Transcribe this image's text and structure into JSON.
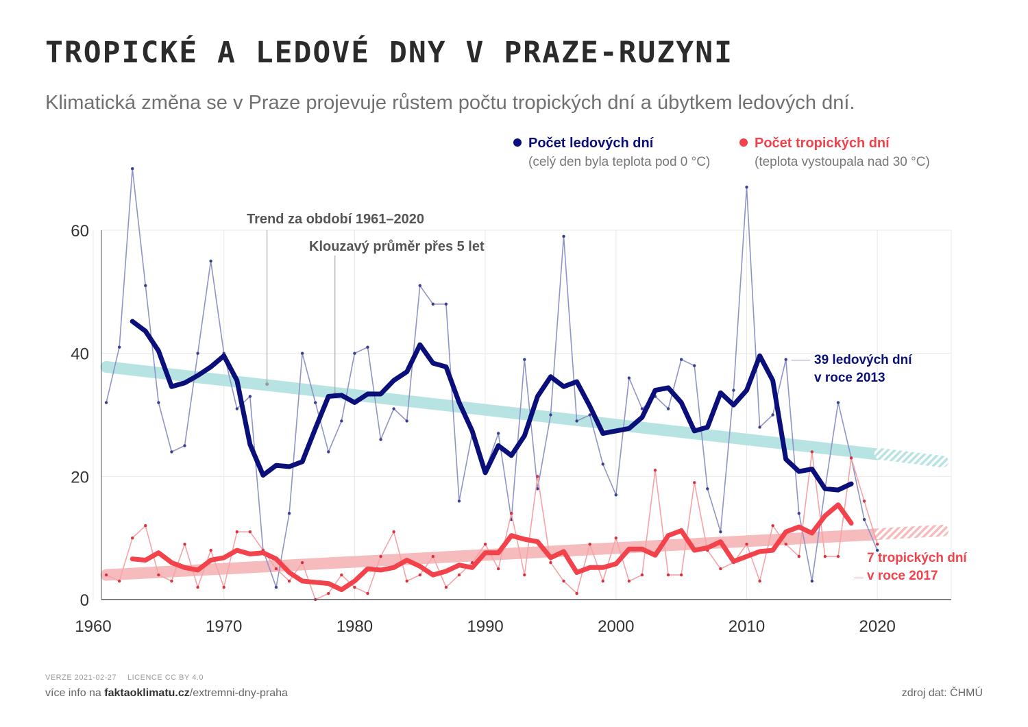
{
  "title": "TROPICKÉ A LEDOVÉ DNY V PRAZE-RUZYNI",
  "subtitle": "Klimatická změna se v Praze projevuje růstem počtu tropických dní a úbytkem ledových dní.",
  "legend": {
    "ice": {
      "label": "Počet ledových dní",
      "note": "(celý den byla teplota pod 0 °C)"
    },
    "tropical": {
      "label": "Počet tropických dní",
      "note": "(teplota vystoupala nad 30 °C)"
    }
  },
  "annotations": {
    "trend": "Trend za období 1961–2020",
    "moving_avg": "Klouzavý průměr přes 5 let",
    "ice_callout": [
      "39 ledových dní",
      "v roce 2013"
    ],
    "tropical_callout": [
      "7 tropických dní",
      "v roce 2017"
    ]
  },
  "footer": {
    "version": "VERZE 2021-02-27",
    "licence": "LICENCE CC BY 4.0",
    "more_prefix": "více info na ",
    "more_domain": "faktaoklimatu.cz",
    "more_path": "/extremni-dny-praha",
    "source": "zdroj dat: ČHMÚ"
  },
  "colors": {
    "ice": "#0a0f7a",
    "ice_thin": "#8f94c7",
    "tropical": "#f2424b",
    "tropical_thin": "#f5a3a7",
    "ice_trend": "#b7e3e3",
    "tropical_trend": "#f6bcbd"
  },
  "chart_data": {
    "type": "line",
    "xlim": [
      1960,
      2025
    ],
    "ylim": [
      0,
      70
    ],
    "x_ticks": [
      1960,
      1970,
      1980,
      1990,
      2000,
      2010,
      2020
    ],
    "y_ticks": [
      0,
      20,
      40,
      60
    ],
    "grid": true,
    "legend_position": "top-right",
    "series": [
      {
        "name": "Počet ledových dní",
        "x": [
          1961,
          1962,
          1963,
          1964,
          1965,
          1966,
          1967,
          1968,
          1969,
          1970,
          1971,
          1972,
          1973,
          1974,
          1975,
          1976,
          1977,
          1978,
          1979,
          1980,
          1981,
          1982,
          1983,
          1984,
          1985,
          1986,
          1987,
          1988,
          1989,
          1990,
          1991,
          1992,
          1993,
          1994,
          1995,
          1996,
          1997,
          1998,
          1999,
          2000,
          2001,
          2002,
          2003,
          2004,
          2005,
          2006,
          2007,
          2008,
          2009,
          2010,
          2011,
          2012,
          2013,
          2014,
          2015,
          2016,
          2017,
          2018,
          2019,
          2020
        ],
        "values": [
          32,
          41,
          70,
          51,
          32,
          24,
          25,
          40,
          55,
          40,
          31,
          33,
          8,
          2,
          14,
          40,
          32,
          24,
          29,
          40,
          41,
          26,
          31,
          29,
          51,
          48,
          48,
          16,
          27,
          21,
          27,
          13,
          39,
          18,
          30,
          59,
          29,
          30,
          22,
          17,
          36,
          31,
          33,
          31,
          39,
          38,
          18,
          11,
          34,
          67,
          28,
          30,
          39,
          14,
          3,
          18,
          32,
          23,
          13,
          8
        ]
      },
      {
        "name": "Klouzavý průměr přes 5 let (ledové dny)",
        "x": [
          1963,
          1964,
          1965,
          1966,
          1967,
          1968,
          1969,
          1970,
          1971,
          1972,
          1973,
          1974,
          1975,
          1976,
          1977,
          1978,
          1979,
          1980,
          1981,
          1982,
          1983,
          1984,
          1985,
          1986,
          1987,
          1988,
          1989,
          1990,
          1991,
          1992,
          1993,
          1994,
          1995,
          1996,
          1997,
          1998,
          1999,
          2000,
          2001,
          2002,
          2003,
          2004,
          2005,
          2006,
          2007,
          2008,
          2009,
          2010,
          2011,
          2012,
          2013,
          2014,
          2015,
          2016,
          2017,
          2018
        ],
        "values": [
          45.2,
          43.6,
          40.4,
          34.6,
          35.2,
          36.4,
          37.8,
          39.6,
          35.6,
          25.2,
          20.2,
          21.8,
          21.6,
          22.4,
          27.8,
          33.0,
          33.2,
          32.0,
          33.4,
          33.4,
          35.6,
          37.0,
          41.4,
          38.4,
          37.8,
          32.0,
          27.4,
          20.6,
          25.0,
          23.4,
          26.6,
          33.0,
          36.2,
          34.6,
          35.4,
          31.4,
          27.0,
          27.4,
          27.8,
          29.6,
          34.0,
          34.4,
          32.0,
          27.4,
          28.0,
          33.6,
          31.6,
          34.0,
          39.6,
          35.6,
          22.8,
          20.8,
          21.2,
          18.0,
          17.8,
          18.8
        ]
      },
      {
        "name": "Trend za období 1961–2020 (ledové dny)",
        "x": [
          1961,
          2020
        ],
        "values": [
          37.8,
          23.6
        ],
        "extension_to": 2025,
        "extension_value": 22.4
      },
      {
        "name": "Počet tropických dní",
        "x": [
          1961,
          1962,
          1963,
          1964,
          1965,
          1966,
          1967,
          1968,
          1969,
          1970,
          1971,
          1972,
          1973,
          1974,
          1975,
          1976,
          1977,
          1978,
          1979,
          1980,
          1981,
          1982,
          1983,
          1984,
          1985,
          1986,
          1987,
          1988,
          1989,
          1990,
          1991,
          1992,
          1993,
          1994,
          1995,
          1996,
          1997,
          1998,
          1999,
          2000,
          2001,
          2002,
          2003,
          2004,
          2005,
          2006,
          2007,
          2008,
          2009,
          2010,
          2011,
          2012,
          2013,
          2014,
          2015,
          2016,
          2017,
          2018,
          2019,
          2020
        ],
        "values": [
          4,
          3,
          10,
          12,
          4,
          3,
          9,
          2,
          8,
          2,
          11,
          11,
          8,
          5,
          3,
          6,
          0,
          1,
          4,
          2,
          1,
          7,
          11,
          3,
          4,
          7,
          2,
          4,
          6,
          9,
          5,
          14,
          4,
          20,
          6,
          3,
          1,
          9,
          3,
          10,
          3,
          4,
          21,
          4,
          4,
          19,
          8,
          5,
          6,
          9,
          3,
          12,
          9,
          7,
          24,
          7,
          7,
          23,
          16,
          9
        ]
      },
      {
        "name": "Klouzavý průměr přes 5 let (tropické dny)",
        "x": [
          1963,
          1964,
          1965,
          1966,
          1967,
          1968,
          1969,
          1970,
          1971,
          1972,
          1973,
          1974,
          1975,
          1976,
          1977,
          1978,
          1979,
          1980,
          1981,
          1982,
          1983,
          1984,
          1985,
          1986,
          1987,
          1988,
          1989,
          1990,
          1991,
          1992,
          1993,
          1994,
          1995,
          1996,
          1997,
          1998,
          1999,
          2000,
          2001,
          2002,
          2003,
          2004,
          2005,
          2006,
          2007,
          2008,
          2009,
          2010,
          2011,
          2012,
          2013,
          2014,
          2015,
          2016,
          2017,
          2018
        ],
        "values": [
          6.6,
          6.4,
          7.6,
          6.0,
          5.2,
          4.8,
          6.4,
          6.8,
          8.0,
          7.4,
          7.6,
          6.6,
          4.4,
          3.0,
          2.8,
          2.6,
          1.6,
          3.0,
          5.0,
          4.8,
          5.2,
          6.4,
          5.4,
          4.0,
          4.6,
          5.6,
          5.2,
          7.6,
          7.6,
          10.4,
          9.8,
          9.4,
          6.8,
          7.8,
          4.4,
          5.2,
          5.2,
          5.8,
          8.2,
          8.2,
          7.2,
          10.4,
          11.2,
          8.0,
          8.4,
          9.4,
          6.2,
          7.0,
          7.8,
          8.0,
          11.0,
          11.8,
          10.8,
          13.6,
          15.4,
          12.4
        ]
      },
      {
        "name": "Trend za období 1961–2020 (tropické dny)",
        "x": [
          1961,
          2020
        ],
        "values": [
          4.0,
          10.6
        ],
        "extension_to": 2025,
        "extension_value": 11.2
      }
    ]
  }
}
